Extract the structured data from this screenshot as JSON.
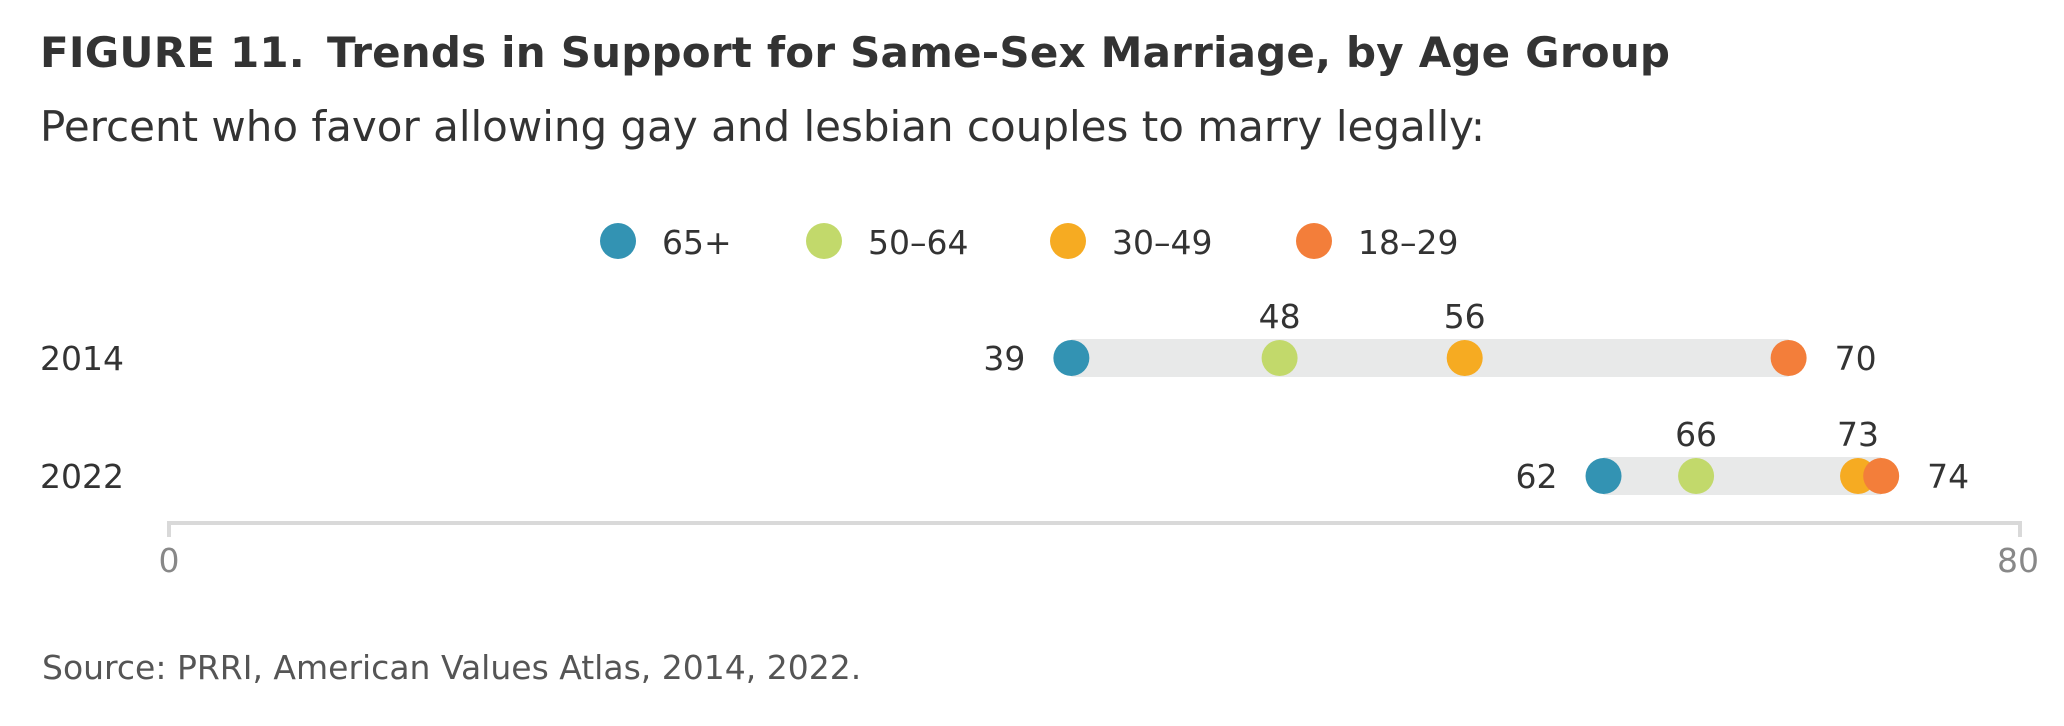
{
  "figure": {
    "label": "FIGURE 11.",
    "title": "Trends in Support for Same-Sex Marriage, by Age Group",
    "subtitle": "Percent who favor allowing gay and lesbian couples to marry legally:",
    "source": "Source: PRRI, American Values Atlas, 2014, 2022."
  },
  "chart_data": {
    "type": "dot",
    "categories": [
      "2014",
      "2022"
    ],
    "series": [
      {
        "name": "65+",
        "color": "#3393b3",
        "values": [
          39,
          62
        ]
      },
      {
        "name": "50–64",
        "color": "#c2d96b",
        "values": [
          48,
          66
        ]
      },
      {
        "name": "30–49",
        "color": "#f6ab22",
        "values": [
          56,
          73
        ]
      },
      {
        "name": "18–29",
        "color": "#f37e3a",
        "values": [
          70,
          74
        ]
      }
    ],
    "xlim": [
      0,
      80
    ],
    "tick_labels": [
      "0",
      "80"
    ],
    "legend_position": "top-center",
    "grid": false
  }
}
